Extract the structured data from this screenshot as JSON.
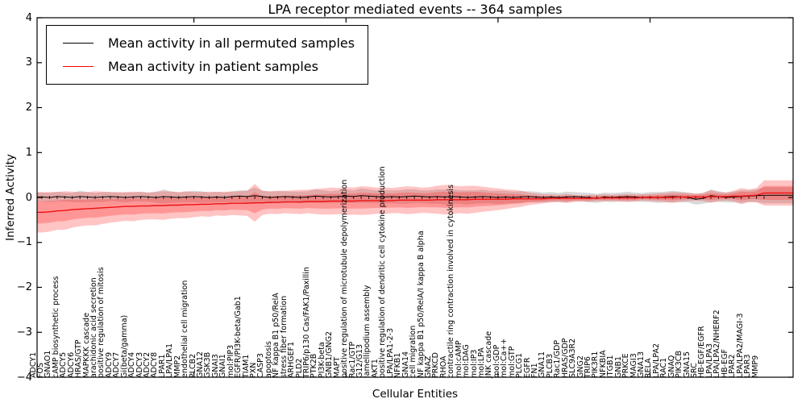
{
  "title": "LPA receptor mediated events -- 364 samples",
  "axes": {
    "ylabel": "Inferred Activity",
    "xlabel": "Cellular Entities",
    "yticks": [
      "4",
      "3",
      "2",
      "1",
      "0",
      "−1",
      "−2",
      "−3",
      "−4"
    ],
    "ytick_values": [
      4,
      3,
      2,
      1,
      0,
      -1,
      -2,
      -3,
      -4
    ],
    "ylim": [
      -4,
      4
    ]
  },
  "legend": [
    {
      "label": "Mean activity in all permuted samples",
      "color": "#000000"
    },
    {
      "label": "Mean activity in patient samples",
      "color": "#ff0000"
    }
  ],
  "colors": {
    "permuted_line": "#000000",
    "permuted_band": "#aaaaaa",
    "patient_line": "#ee1111",
    "patient_band": "#ff2a2a",
    "frame": "#000000"
  },
  "chart_data": {
    "type": "line",
    "title": "LPA receptor mediated events -- 364 samples",
    "xlabel": "Cellular Entities",
    "ylabel": "Inferred Activity",
    "ylim": [
      -4,
      4
    ],
    "grid": false,
    "legend_position": "upper left",
    "categories": [
      "ADCY1",
      "FOS",
      "GNAO1",
      "cAMP biosynthetic process",
      "ADCY5",
      "ADCY6",
      "HRAS/GTP",
      "MAPKKK cascade",
      "arachidonic acid secretion",
      "positive regulation of mitosis",
      "ADCY9",
      "ADCY7",
      "Gi(beta/gamma)",
      "ADCY4",
      "ADCY3",
      "ADCY2",
      "ADCY8",
      "LPAR1",
      "LPA/LPA1",
      "MMP2",
      "endothelial cell migration",
      "PLCB2",
      "GNA12",
      "GSK3B",
      "GNAI3",
      "GNAI1",
      "mol:PIP3",
      "EGFR/PI3K-beta/Gab1",
      "TIAM1",
      "PXN",
      "CASP3",
      "apoptosis",
      "NF kappa B1 p50/RelA",
      "stress fiber formation",
      "ARHGEF1",
      "PLD2",
      "TRIP6/p130 Cas/FAK1/Paxillin",
      "PTK2B",
      "PI3K-beta",
      "GNB1/GNG2",
      "MAPT",
      "positive regulation of microtubule depolymerization",
      "Rac1/GTP",
      "G12/G13",
      "lamellipodium assembly",
      "AKT1",
      "positive regulation of dendritic cell cytokine production",
      "LPA/LPA1-2-3",
      "NFKB1",
      "GNA14",
      "cell migration",
      "NF kappa B1 p50/RelA/I kappa B alpha",
      "GNAZ",
      "PRKCD",
      "RHOA",
      "contractile ring contraction involved in cytokinesis",
      "mol:cAMP",
      "mol:DAG",
      "mol:IP3",
      "mol:LPA",
      "JNK cascade",
      "mol:GDP",
      "mol:Ca++",
      "mol:GTP",
      "PLCG1",
      "EGFR",
      "FN1",
      "GNA11",
      "PLCB3",
      "Rac1/GDP",
      "HRAS/GDP",
      "SLC9A3R2",
      "GNG2",
      "TRIP6",
      "PIK3R1",
      "NFKBIA",
      "ITGB1",
      "GNB1",
      "PRKCE",
      "MAGI3",
      "GNA13",
      "RELA",
      "LPA/LPA2",
      "RAC1",
      "GNAQ",
      "PIK3CB",
      "GNA15",
      "SRC",
      "HB-EGF/EGFR",
      "LPA/LPA3",
      "LPA/LPA2/NHERF2",
      "HB-EGF",
      "LPAR2",
      "LPA/LPA2/MAGI-3",
      "LPAR3",
      "MMP9"
    ],
    "series": [
      {
        "name": "Mean activity in all permuted samples",
        "color": "#000000",
        "values": [
          0.01,
          0.0,
          0.02,
          0.01,
          0.0,
          0.02,
          0.01,
          0.0,
          0.01,
          0.02,
          0.01,
          0.0,
          0.01,
          0.02,
          0.01,
          0.0,
          0.02,
          0.01,
          0.0,
          0.01,
          0.02,
          0.01,
          0.0,
          0.01,
          0.0,
          0.02,
          0.03,
          0.02,
          0.04,
          0.02,
          0.0,
          0.01,
          0.02,
          0.01,
          0.0,
          0.01,
          0.03,
          0.02,
          0.01,
          0.02,
          0.03,
          0.02,
          0.04,
          0.03,
          0.02,
          0.01,
          0.02,
          0.01,
          0.02,
          0.03,
          0.02,
          0.01,
          0.02,
          0.01,
          0.02,
          0.01,
          0.0,
          0.01,
          0.02,
          0.01,
          0.0,
          0.01,
          0.0,
          0.01,
          0.02,
          0.01,
          0.0,
          0.01,
          0.0,
          0.01,
          0.02,
          0.01,
          0.0,
          -0.02,
          0.01,
          0.0,
          0.01,
          0.02,
          0.01,
          0.0,
          0.01,
          0.0,
          0.01,
          0.02,
          0.01,
          0.0,
          -0.04,
          -0.02,
          0.04,
          0.02,
          0.0,
          0.01,
          0.02,
          0.03,
          0.04,
          0.05
        ],
        "band": [
          0.1,
          0.1,
          0.11,
          0.1,
          0.1,
          0.13,
          0.11,
          0.1,
          0.11,
          0.1,
          0.1,
          0.11,
          0.1,
          0.11,
          0.1,
          0.12,
          0.16,
          0.13,
          0.11,
          0.12,
          0.13,
          0.13,
          0.11,
          0.12,
          0.11,
          0.12,
          0.13,
          0.14,
          0.18,
          0.13,
          0.13,
          0.13,
          0.12,
          0.12,
          0.13,
          0.13,
          0.15,
          0.14,
          0.13,
          0.14,
          0.15,
          0.14,
          0.16,
          0.15,
          0.14,
          0.15,
          0.14,
          0.15,
          0.16,
          0.15,
          0.14,
          0.15,
          0.16,
          0.17,
          0.16,
          0.15,
          0.16,
          0.15,
          0.15,
          0.14,
          0.15,
          0.14,
          0.13,
          0.13,
          0.12,
          0.12,
          0.11,
          0.11,
          0.1,
          0.12,
          0.1,
          0.1,
          0.1,
          0.1,
          0.1,
          0.1,
          0.1,
          0.11,
          0.1,
          0.1,
          0.11,
          0.12,
          0.12,
          0.13,
          0.12,
          0.11,
          0.12,
          0.12,
          0.14,
          0.12,
          0.11,
          0.12,
          0.14,
          0.13,
          0.14,
          0.18
        ]
      },
      {
        "name": "Mean activity in patient samples",
        "color": "#ff0000",
        "values": [
          -0.33,
          -0.32,
          -0.3,
          -0.29,
          -0.27,
          -0.26,
          -0.25,
          -0.24,
          -0.23,
          -0.22,
          -0.21,
          -0.2,
          -0.2,
          -0.19,
          -0.19,
          -0.18,
          -0.18,
          -0.17,
          -0.17,
          -0.16,
          -0.16,
          -0.15,
          -0.15,
          -0.14,
          -0.14,
          -0.13,
          -0.13,
          -0.13,
          -0.12,
          -0.12,
          -0.11,
          -0.11,
          -0.1,
          -0.1,
          -0.1,
          -0.09,
          -0.09,
          -0.09,
          -0.08,
          -0.08,
          -0.08,
          -0.08,
          -0.07,
          -0.07,
          -0.07,
          -0.07,
          -0.07,
          -0.06,
          -0.06,
          -0.06,
          -0.06,
          -0.06,
          -0.05,
          -0.05,
          -0.05,
          -0.05,
          -0.05,
          -0.04,
          -0.04,
          -0.04,
          -0.04,
          -0.04,
          -0.03,
          -0.03,
          -0.03,
          -0.03,
          -0.03,
          -0.02,
          -0.02,
          -0.02,
          -0.02,
          -0.02,
          -0.02,
          -0.01,
          -0.01,
          -0.01,
          -0.01,
          -0.01,
          -0.01,
          0.0,
          0.0,
          0.0,
          0.0,
          0.0,
          0.01,
          0.01,
          0.01,
          0.01,
          0.02,
          0.02,
          0.02,
          0.03,
          0.03,
          0.04,
          0.05,
          0.1
        ],
        "band": [
          0.45,
          0.44,
          0.42,
          0.43,
          0.4,
          0.38,
          0.37,
          0.38,
          0.36,
          0.34,
          0.33,
          0.32,
          0.33,
          0.31,
          0.3,
          0.31,
          0.32,
          0.3,
          0.29,
          0.3,
          0.28,
          0.27,
          0.28,
          0.26,
          0.27,
          0.26,
          0.27,
          0.28,
          0.42,
          0.27,
          0.25,
          0.26,
          0.25,
          0.26,
          0.27,
          0.26,
          0.28,
          0.29,
          0.3,
          0.29,
          0.31,
          0.3,
          0.32,
          0.31,
          0.29,
          0.3,
          0.28,
          0.29,
          0.31,
          0.3,
          0.28,
          0.29,
          0.31,
          0.33,
          0.32,
          0.3,
          0.31,
          0.3,
          0.28,
          0.26,
          0.24,
          0.22,
          0.2,
          0.18,
          0.14,
          0.12,
          0.1,
          0.09,
          0.08,
          0.1,
          0.08,
          0.07,
          0.08,
          0.07,
          0.08,
          0.07,
          0.08,
          0.09,
          0.08,
          0.07,
          0.08,
          0.09,
          0.1,
          0.12,
          0.1,
          0.09,
          0.08,
          0.09,
          0.14,
          0.1,
          0.09,
          0.12,
          0.18,
          0.14,
          0.16,
          0.28
        ]
      }
    ]
  }
}
